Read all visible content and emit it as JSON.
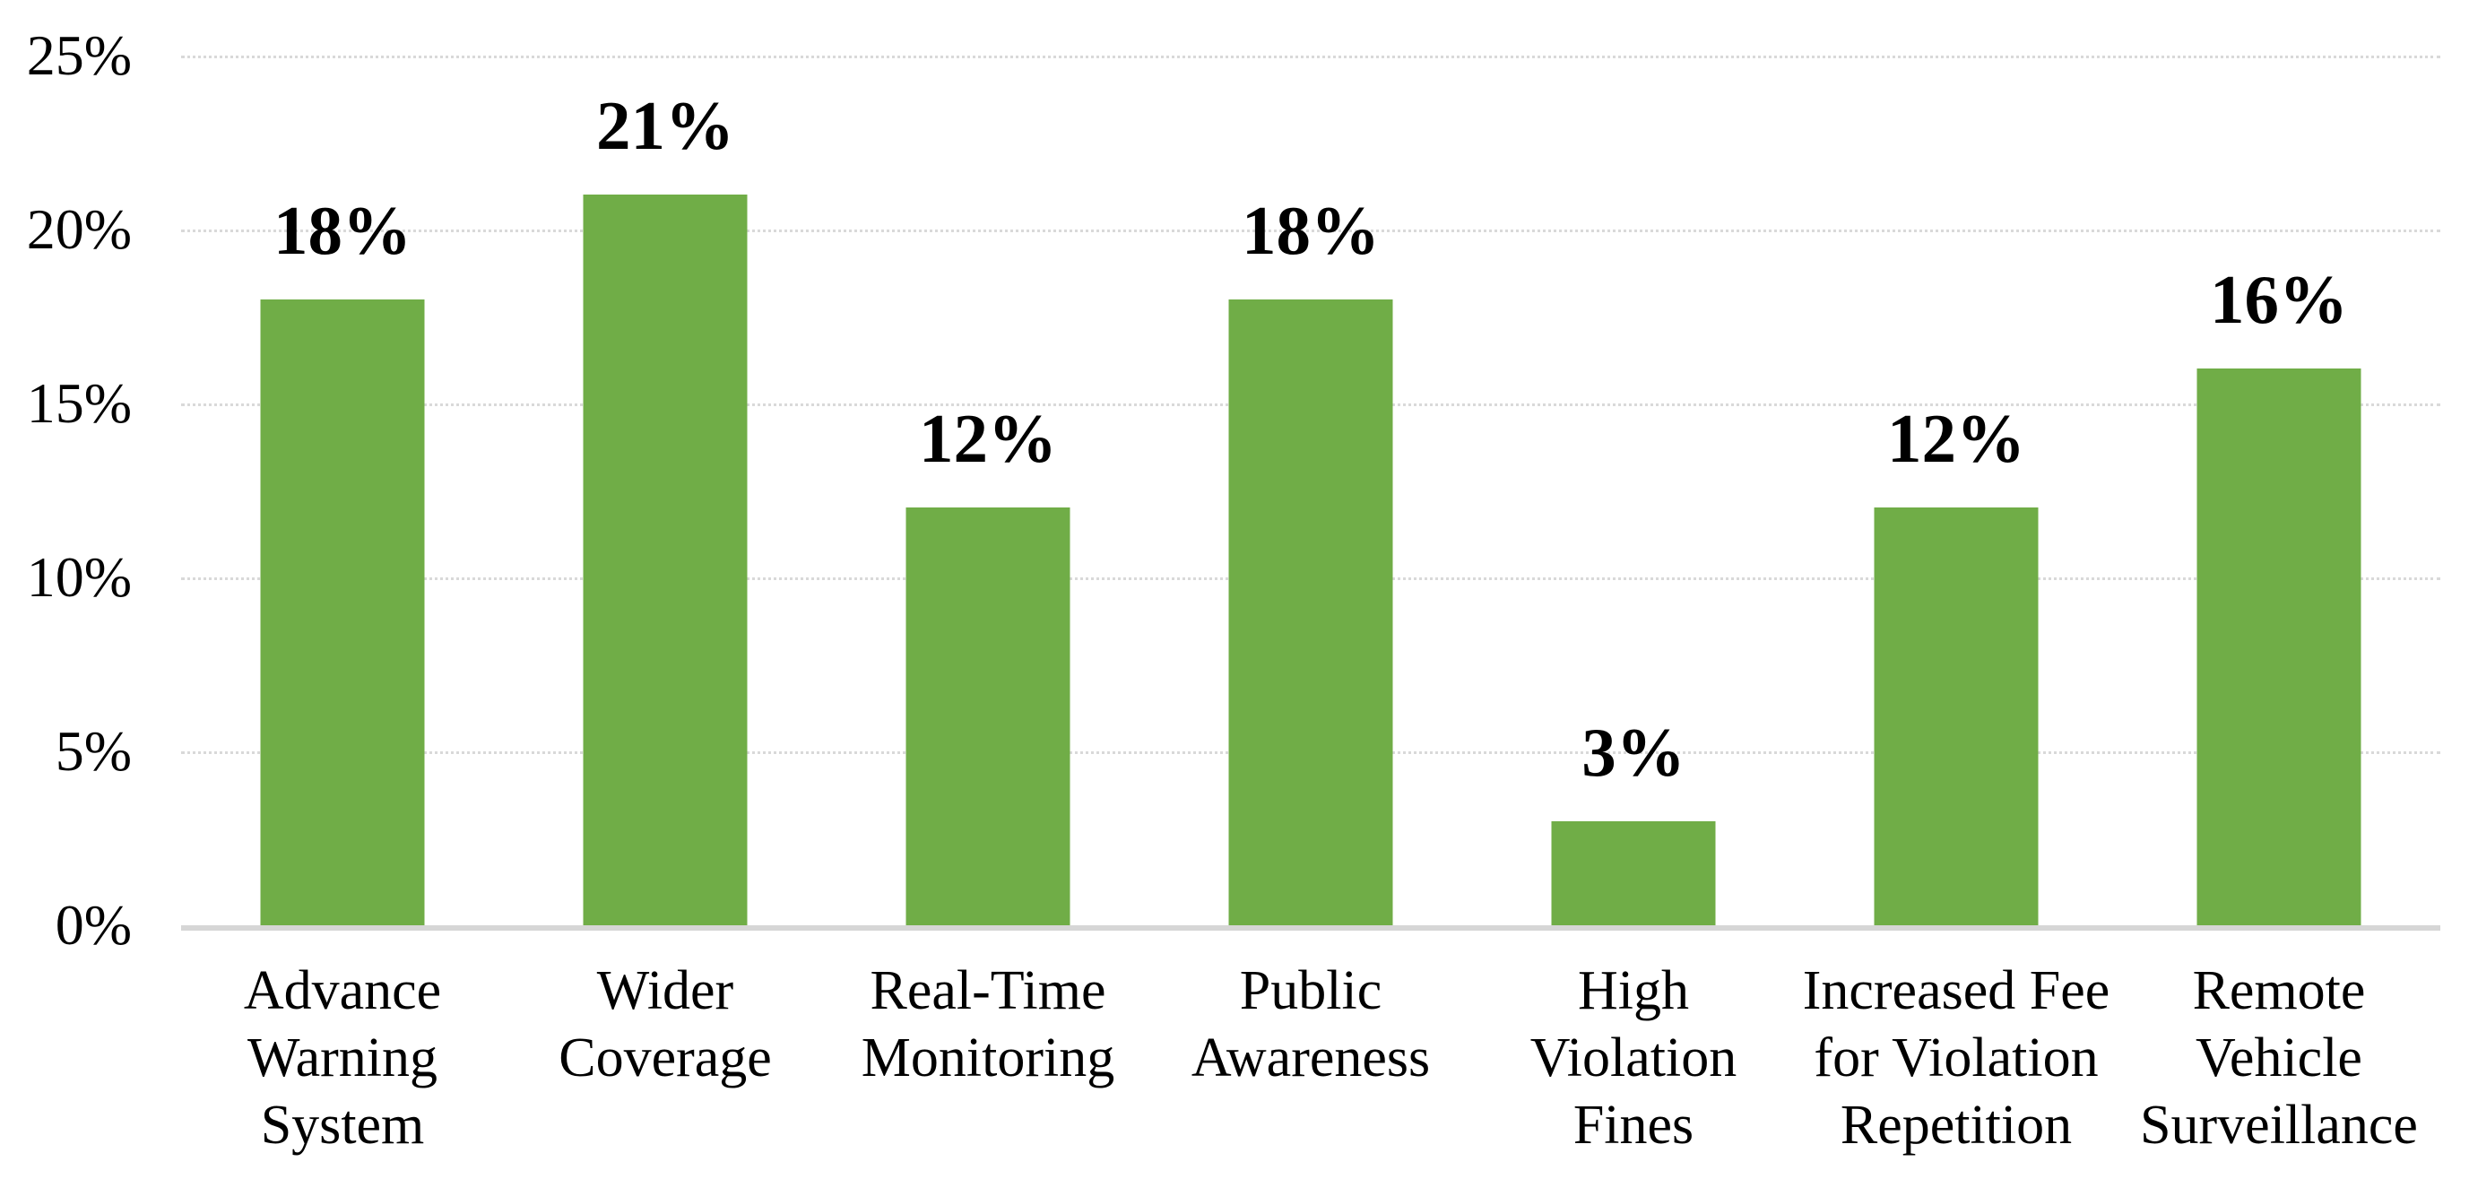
{
  "chart_data": {
    "type": "bar",
    "title": "",
    "xlabel": "",
    "ylabel": "",
    "categories": [
      "Advance\nWarning\nSystem",
      "Wider\nCoverage",
      "Real-Time\nMonitoring",
      "Public\nAwareness",
      "High\nViolation\nFines",
      "Increased Fee\nfor Violation\nRepetition",
      "Remote\nVehicle\nSurveillance"
    ],
    "values": [
      18,
      21,
      12,
      18,
      3,
      12,
      16
    ],
    "data_labels": [
      "18%",
      "21%",
      "12%",
      "18%",
      "3%",
      "12%",
      "16%"
    ],
    "data_label_position": "outside-end",
    "ylim": [
      0,
      25
    ],
    "y_ticks": [
      {
        "value": 25,
        "label": "25%"
      },
      {
        "value": 20,
        "label": "20%"
      },
      {
        "value": 15,
        "label": "15%"
      },
      {
        "value": 10,
        "label": "10%"
      },
      {
        "value": 5,
        "label": "5%"
      },
      {
        "value": 0,
        "label": "0%"
      }
    ],
    "grid": "horizontal-dotted",
    "legend": "none",
    "colors": {
      "bar": "#70AD47",
      "gridline": "#D9D9D9",
      "axis_line": "#D6D6D6",
      "text": "#000000",
      "background": "#FFFFFF"
    }
  }
}
